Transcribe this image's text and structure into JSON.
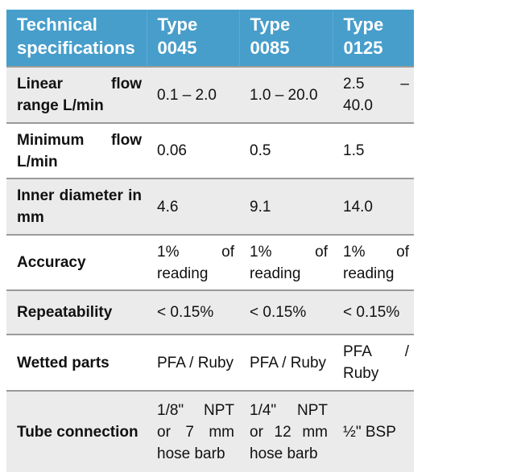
{
  "table": {
    "headers": [
      "Technical specifications",
      "Type 0045",
      "Type 0085",
      "Type 0125"
    ],
    "header_color": "#479ecb",
    "rows": [
      {
        "label": "Linear flow range L/min",
        "values": [
          "0.1 – 2.0",
          "1.0 – 20.0",
          "2.5 – 40.0"
        ]
      },
      {
        "label": "Minimum flow L/min",
        "values": [
          "0.06",
          "0.5",
          "1.5"
        ]
      },
      {
        "label": "Inner diameter in mm",
        "values": [
          "4.6",
          "9.1",
          "14.0"
        ]
      },
      {
        "label": "Accuracy",
        "values": [
          "1% of reading",
          "1% of reading",
          "1% of reading"
        ]
      },
      {
        "label": "Repeatability",
        "values": [
          "< 0.15%",
          "< 0.15%",
          "< 0.15%"
        ]
      },
      {
        "label": "Wetted parts",
        "values": [
          "PFA / Ruby",
          "PFA / Ruby",
          "PFA / Ruby"
        ]
      },
      {
        "label": "Tube connection",
        "values": [
          "1/8\" NPT or 7 mm hose barb",
          "1/4\" NPT or 12 mm hose barb",
          "½\" BSP"
        ]
      }
    ]
  }
}
